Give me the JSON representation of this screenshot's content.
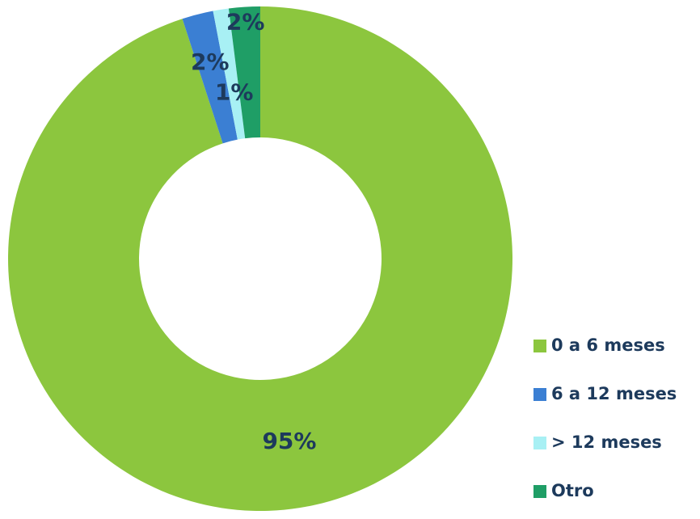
{
  "chart_data": {
    "type": "donut",
    "categories": [
      "0 a 6 meses",
      "6 a 12 meses",
      "> 12 meses",
      "Otro"
    ],
    "values": [
      95,
      2,
      1,
      2
    ],
    "value_labels": [
      "95%",
      "2%",
      "1%",
      "2%"
    ],
    "colors": [
      "#8cc63e",
      "#3b7fd3",
      "#a8f0f4",
      "#1f9e66"
    ],
    "legend": "right"
  }
}
